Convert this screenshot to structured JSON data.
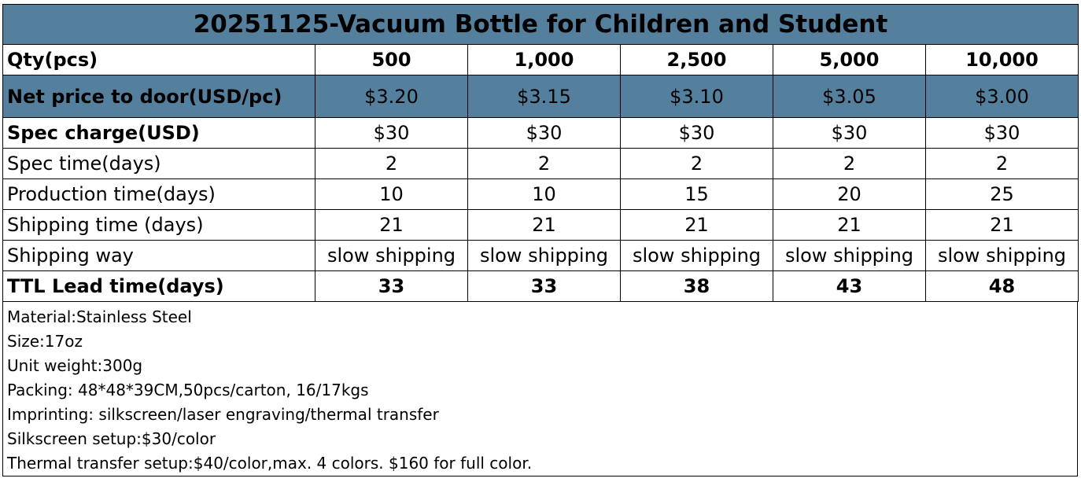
{
  "title": "20251125-Vacuum Bottle for Children and Student",
  "qty": {
    "label": "Qty(pcs)",
    "values": [
      "500",
      "1,000",
      "2,500",
      "5,000",
      "10,000"
    ]
  },
  "net_price": {
    "label": "Net price to door(USD/pc)",
    "values": [
      "$3.20",
      "$3.15",
      "$3.10",
      "$3.05",
      "$3.00"
    ]
  },
  "spec_charge": {
    "label": "Spec charge(USD)",
    "values": [
      "$30",
      "$30",
      "$30",
      "$30",
      "$30"
    ]
  },
  "spec_time": {
    "label": "Spec time(days)",
    "values": [
      "2",
      "2",
      "2",
      "2",
      "2"
    ]
  },
  "production_time": {
    "label": "Production time(days)",
    "values": [
      "10",
      "10",
      "15",
      "20",
      "25"
    ]
  },
  "shipping_time": {
    "label": "Shipping time (days)",
    "values": [
      "21",
      "21",
      "21",
      "21",
      "21"
    ]
  },
  "shipping_way": {
    "label": "Shipping way",
    "values": [
      "slow shipping",
      "slow shipping",
      "slow shipping",
      "slow shipping",
      "slow shipping"
    ]
  },
  "ttl_lead_time": {
    "label": "TTL Lead time(days)",
    "values": [
      "33",
      "33",
      "38",
      "43",
      "48"
    ]
  },
  "notes": [
    "Material:Stainless Steel",
    "Size:17oz",
    "Unit weight:300g",
    "Packing:  48*48*39CM,50pcs/carton, 16/17kgs",
    "Imprinting: silkscreen/laser engraving/thermal transfer",
    "Silkscreen setup:$30/color",
    "Thermal transfer setup:$40/color,max. 4 colors. $160 for full color."
  ],
  "colors": {
    "header_fill": "#54809e",
    "border": "#000000"
  }
}
